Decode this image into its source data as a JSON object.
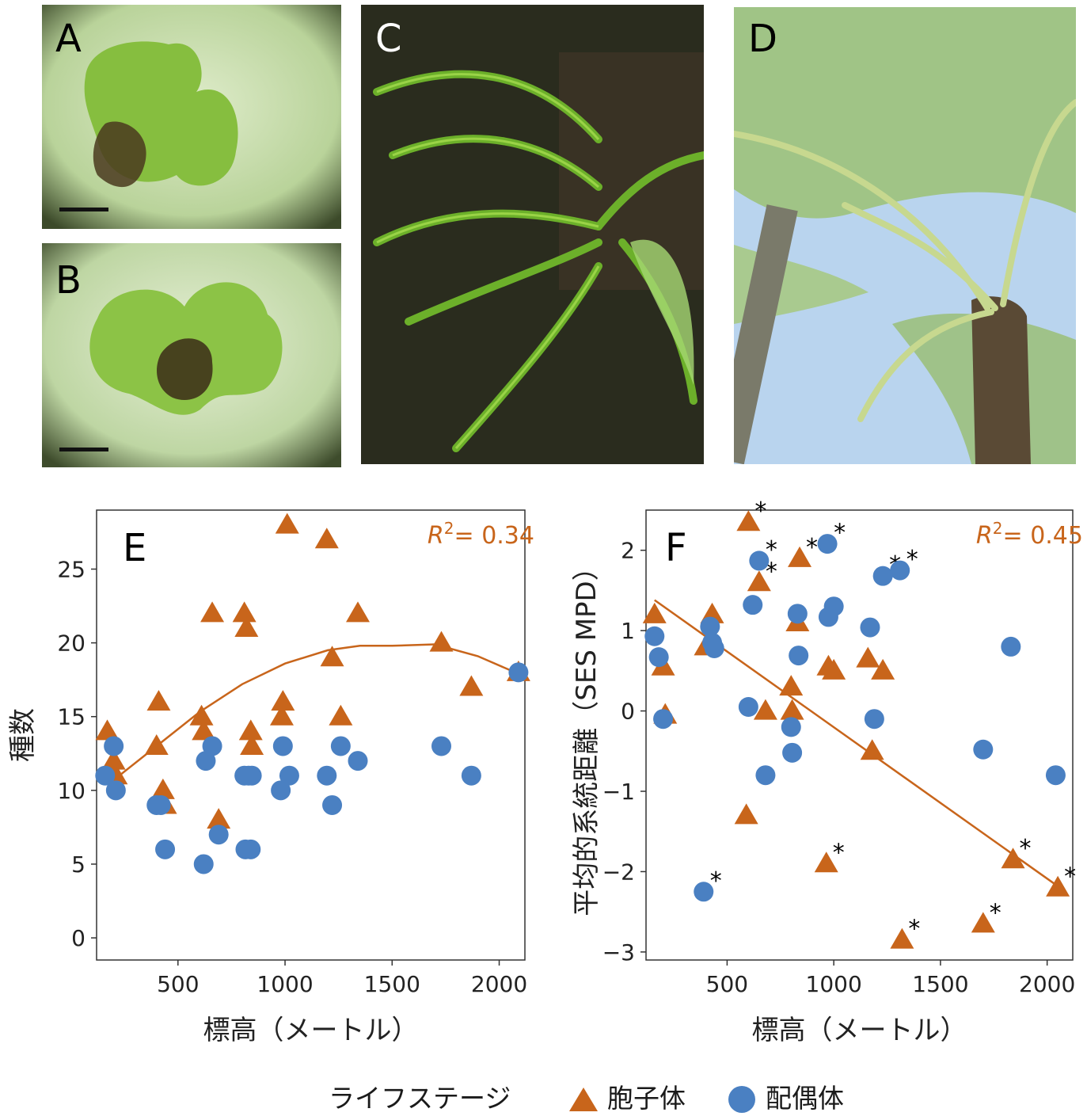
{
  "panels": {
    "A": "A",
    "B": "B",
    "C": "C",
    "D": "D",
    "E": "E",
    "F": "F"
  },
  "colors": {
    "sporophyte": "#c8651b",
    "gametophyte": "#4a80c2",
    "axis": "#333333",
    "photo_moss_bg": "#bfd7a5",
    "photo_moss": "#7fb83c",
    "photo_fern_bg": "#2b2f22",
    "photo_fern": "#6fb52d",
    "sky": "#bcd6ef"
  },
  "photos": {
    "A": "gametophyte-thallus-photo",
    "B": "gametophyte-thallus-photo",
    "C": "fern-sporophyte-photo",
    "D": "tree-fern-photo"
  },
  "legend": {
    "title": "ライフステージ",
    "sporophyte_label": "胞子体",
    "gametophyte_label": "配偶体"
  },
  "chart_data": [
    {
      "panel": "E",
      "type": "scatter",
      "xlabel": "標高（メートル）",
      "ylabel": "種数",
      "xlim": [
        120,
        2120
      ],
      "ylim": [
        -1.5,
        29
      ],
      "xticks": [
        500,
        1000,
        1500,
        2000
      ],
      "yticks": [
        0,
        5,
        10,
        15,
        20,
        25
      ],
      "grid": false,
      "annotation": {
        "r2_label": "R",
        "r2_sup": "2",
        "r2_value": "= 0.34"
      },
      "series": [
        {
          "name": "胞子体",
          "marker": "triangle",
          "points": [
            [
              170,
              14
            ],
            [
              200,
              12
            ],
            [
              210,
              11
            ],
            [
              400,
              13
            ],
            [
              410,
              16
            ],
            [
              430,
              10
            ],
            [
              440,
              9
            ],
            [
              610,
              15
            ],
            [
              620,
              14
            ],
            [
              660,
              22
            ],
            [
              690,
              8
            ],
            [
              810,
              22
            ],
            [
              820,
              21
            ],
            [
              840,
              14
            ],
            [
              845,
              13
            ],
            [
              985,
              15
            ],
            [
              990,
              16
            ],
            [
              1010,
              28
            ],
            [
              1195,
              27
            ],
            [
              1220,
              19
            ],
            [
              1260,
              15
            ],
            [
              1340,
              22
            ],
            [
              1730,
              20
            ],
            [
              1870,
              17
            ],
            [
              2090,
              18
            ]
          ]
        },
        {
          "name": "配偶体",
          "marker": "circle",
          "points": [
            [
              160,
              11
            ],
            [
              200,
              13
            ],
            [
              210,
              10
            ],
            [
              400,
              9
            ],
            [
              420,
              9
            ],
            [
              440,
              6
            ],
            [
              620,
              5
            ],
            [
              630,
              12
            ],
            [
              660,
              13
            ],
            [
              690,
              7
            ],
            [
              810,
              11
            ],
            [
              815,
              6
            ],
            [
              830,
              11
            ],
            [
              840,
              6
            ],
            [
              845,
              11
            ],
            [
              980,
              10
            ],
            [
              990,
              13
            ],
            [
              1020,
              11
            ],
            [
              1195,
              11
            ],
            [
              1220,
              9
            ],
            [
              1260,
              13
            ],
            [
              1340,
              12
            ],
            [
              1730,
              13
            ],
            [
              1870,
              11
            ],
            [
              2090,
              18
            ]
          ]
        }
      ],
      "fit_line": [
        [
          200,
          10.7
        ],
        [
          400,
          13.0
        ],
        [
          600,
          15.3
        ],
        [
          800,
          17.2
        ],
        [
          1000,
          18.6
        ],
        [
          1200,
          19.5
        ],
        [
          1350,
          19.8
        ],
        [
          1500,
          19.8
        ],
        [
          1700,
          19.9
        ],
        [
          1900,
          19.1
        ],
        [
          2090,
          17.9
        ]
      ]
    },
    {
      "panel": "F",
      "type": "scatter",
      "xlabel": "標高（メートル）",
      "ylabel": "平均的系統距離（SES MPD）",
      "xlim": [
        120,
        2120
      ],
      "ylim": [
        -3.1,
        2.5
      ],
      "xticks": [
        500,
        1000,
        1500,
        2000
      ],
      "yticks": [
        -3,
        -2,
        -1,
        0,
        1,
        2
      ],
      "grid": false,
      "annotation": {
        "r2_label": "R",
        "r2_sup": "2",
        "r2_value": "= 0.45"
      },
      "series": [
        {
          "name": "胞子体",
          "marker": "triangle",
          "points": [
            [
              160,
              1.2,
              false
            ],
            [
              200,
              0.55,
              false
            ],
            [
              210,
              -0.05,
              false
            ],
            [
              400,
              0.8,
              false
            ],
            [
              430,
              1.2,
              false
            ],
            [
              590,
              -1.3,
              false
            ],
            [
              600,
              2.35,
              true
            ],
            [
              650,
              1.6,
              true
            ],
            [
              680,
              0.0,
              false
            ],
            [
              800,
              0.3,
              false
            ],
            [
              805,
              0.0,
              false
            ],
            [
              830,
              1.1,
              false
            ],
            [
              840,
              1.9,
              true
            ],
            [
              965,
              -1.9,
              true
            ],
            [
              975,
              0.55,
              false
            ],
            [
              1000,
              0.5,
              false
            ],
            [
              1160,
              0.65,
              false
            ],
            [
              1180,
              -0.5,
              false
            ],
            [
              1230,
              0.5,
              false
            ],
            [
              1320,
              -2.85,
              true
            ],
            [
              1700,
              -2.65,
              true
            ],
            [
              1840,
              -1.85,
              true
            ],
            [
              2050,
              -2.2,
              true
            ]
          ]
        },
        {
          "name": "配偶体",
          "marker": "circle",
          "points": [
            [
              160,
              0.93,
              false
            ],
            [
              180,
              0.67,
              false
            ],
            [
              200,
              -0.1,
              false
            ],
            [
              390,
              -2.25,
              true
            ],
            [
              420,
              1.05,
              false
            ],
            [
              430,
              0.85,
              false
            ],
            [
              440,
              0.78,
              false
            ],
            [
              600,
              0.05,
              false
            ],
            [
              620,
              1.32,
              false
            ],
            [
              650,
              1.87,
              true
            ],
            [
              680,
              -0.8,
              false
            ],
            [
              800,
              -0.2,
              false
            ],
            [
              805,
              -0.52,
              false
            ],
            [
              830,
              1.21,
              false
            ],
            [
              835,
              0.69,
              false
            ],
            [
              970,
              2.08,
              true
            ],
            [
              975,
              1.17,
              false
            ],
            [
              1000,
              1.3,
              false
            ],
            [
              1170,
              1.04,
              false
            ],
            [
              1190,
              -0.1,
              false
            ],
            [
              1230,
              1.68,
              true
            ],
            [
              1310,
              1.75,
              true
            ],
            [
              1700,
              -0.48,
              false
            ],
            [
              1830,
              0.8,
              false
            ],
            [
              2040,
              -0.8,
              false
            ]
          ]
        }
      ],
      "fit_line": [
        [
          160,
          1.38
        ],
        [
          2060,
          -2.2
        ]
      ]
    }
  ]
}
